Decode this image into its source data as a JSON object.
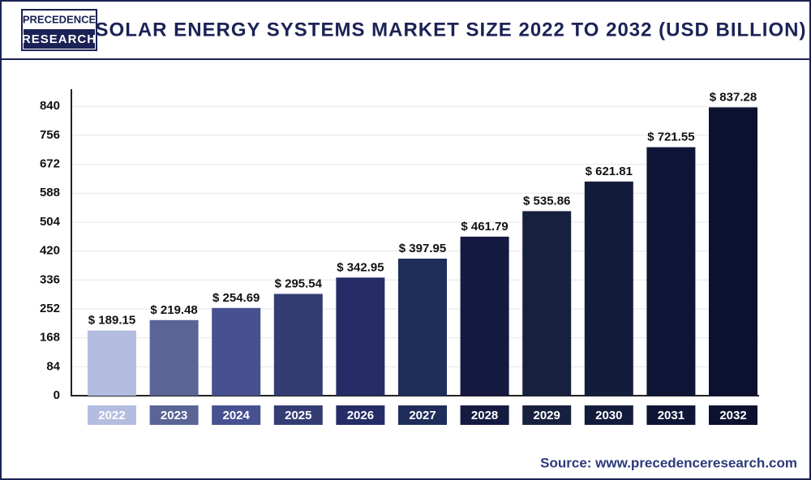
{
  "logo": {
    "line1": "PRECEDENCE",
    "line2": "RESEARCH"
  },
  "chart_data": {
    "type": "bar",
    "title": "SOLAR ENERGY SYSTEMS MARKET SIZE 2022 TO 2032 (USD BILLION)",
    "categories": [
      "2022",
      "2023",
      "2024",
      "2025",
      "2026",
      "2027",
      "2028",
      "2029",
      "2030",
      "2031",
      "2032"
    ],
    "values": [
      189.15,
      219.48,
      254.69,
      295.54,
      342.95,
      397.95,
      461.79,
      535.86,
      621.81,
      721.55,
      837.28
    ],
    "value_labels": [
      "$ 189.15",
      "$ 219.48",
      "$ 254.69",
      "$ 295.54",
      "$ 342.95",
      "$ 397.95",
      "$ 461.79",
      "$ 535.86",
      "$ 621.81",
      "$ 721.55",
      "$ 837.28"
    ],
    "colors": [
      "#b4bde0",
      "#5a6596",
      "#485190",
      "#333d74",
      "#252c66",
      "#1f2d5b",
      "#141a40",
      "#17213f",
      "#141c3c",
      "#0f1536",
      "#0c1130"
    ],
    "ylim": [
      0,
      890
    ],
    "yticks": [
      0,
      84,
      168,
      252,
      336,
      420,
      504,
      588,
      672,
      756,
      840
    ],
    "grid": true,
    "source": "Source: www.precedenceresearch.com"
  }
}
